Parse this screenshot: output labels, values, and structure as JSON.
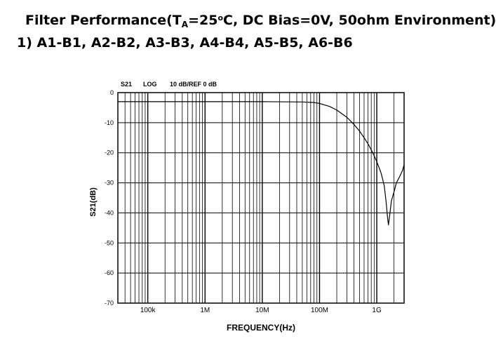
{
  "heading": {
    "line1_prefix": "Filter Performance(T",
    "line1_sub": "A",
    "line1_mid": "=25",
    "line1_sup": "o",
    "line1_suffix": "C, DC Bias=0V, 50ohm Environment)",
    "line2": "1) A1-B1, A2-B2, A3-B3, A4-B4, A5-B5, A6-B6"
  },
  "chart_data": {
    "type": "line",
    "header_labels": [
      "S21",
      "LOG",
      "10 dB/REF 0 dB"
    ],
    "xlabel": "FREQUENCY(Hz)",
    "ylabel": "S21(dB)",
    "x_scale": "log",
    "x_ticks": [
      {
        "value": 100000,
        "label": "100k"
      },
      {
        "value": 1000000,
        "label": "1M"
      },
      {
        "value": 10000000,
        "label": "10M"
      },
      {
        "value": 100000000,
        "label": "100M"
      },
      {
        "value": 1000000000,
        "label": "1G"
      }
    ],
    "xlim": [
      30000,
      3000000000
    ],
    "ylim": [
      -70,
      0
    ],
    "y_ticks": [
      0,
      -10,
      -20,
      -30,
      -40,
      -50,
      -60,
      -70
    ],
    "grid": true,
    "series": [
      {
        "color": "#000000",
        "x": [
          30000,
          100000,
          1000000,
          10000000,
          50000000,
          80000000,
          100000000,
          150000000,
          200000000,
          300000000,
          400000000,
          500000000,
          600000000,
          700000000,
          800000000,
          900000000,
          1000000000,
          1100000000,
          1200000000,
          1350000000,
          1450000000,
          1550000000,
          1600000000,
          1700000000,
          1800000000,
          2000000000,
          2200000000,
          2500000000,
          2800000000,
          3000000000
        ],
        "values": [
          -3,
          -3,
          -3,
          -3,
          -3.1,
          -3.3,
          -3.6,
          -4.6,
          -5.8,
          -8.2,
          -10.6,
          -12.8,
          -15,
          -17,
          -19,
          -21,
          -23,
          -25,
          -27,
          -31,
          -36,
          -42,
          -44,
          -40,
          -36,
          -33,
          -30,
          -28,
          -26,
          -24
        ]
      }
    ]
  }
}
